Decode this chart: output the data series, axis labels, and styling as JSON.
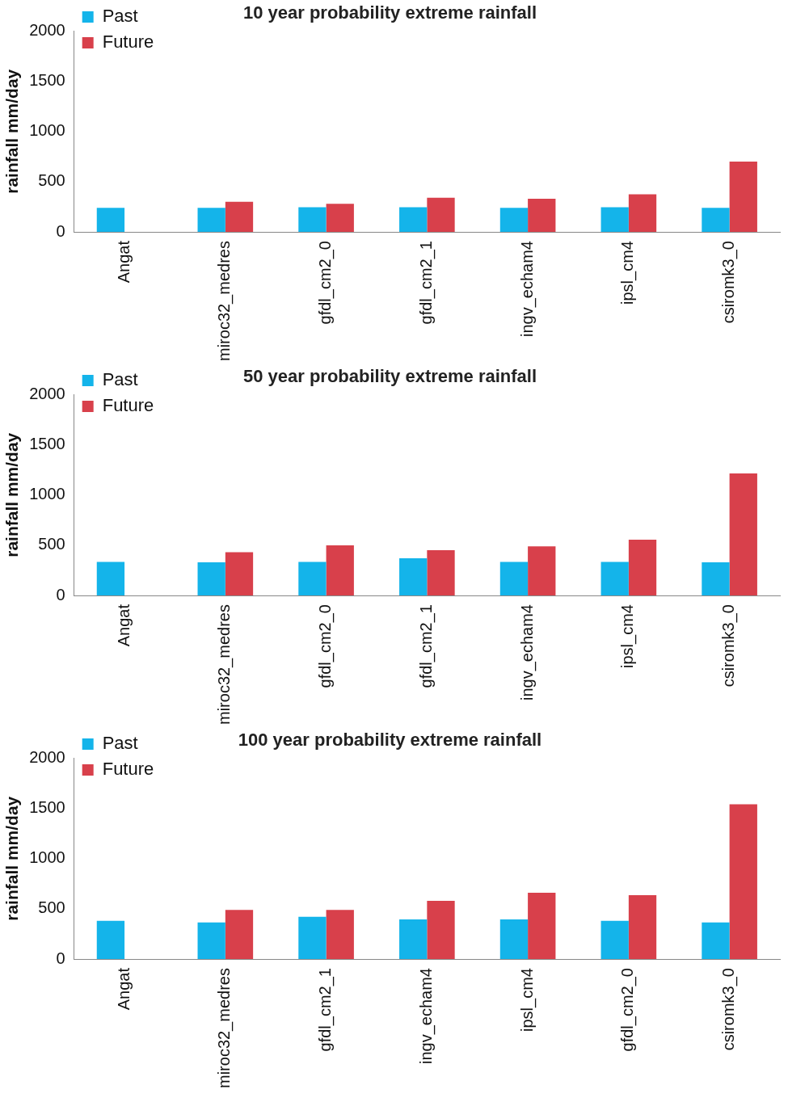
{
  "chart_data": [
    {
      "type": "bar",
      "title": "10 year probability extreme rainfall",
      "ylabel": "rainfall mm/day",
      "categories": [
        "Angat",
        "miroc32_medres",
        "gfdl_cm2_0",
        "gfdl_cm2_1",
        "ingv_echam4",
        "ipsl_cm4",
        "csiromk3_0"
      ],
      "series": [
        {
          "name": "Past",
          "color": "#14b4ea",
          "values": [
            240,
            240,
            245,
            245,
            240,
            245,
            240
          ]
        },
        {
          "name": "Future",
          "color": "#d8404b",
          "values": [
            null,
            300,
            280,
            340,
            330,
            375,
            700
          ]
        }
      ],
      "ylim": [
        0,
        2000
      ],
      "yticks": [
        0,
        500,
        1000,
        1500,
        2000
      ],
      "grid": false,
      "legend": "top left"
    },
    {
      "type": "bar",
      "title": "50 year probability extreme rainfall",
      "ylabel": "rainfall mm/day",
      "categories": [
        "Angat",
        "miroc32_medres",
        "gfdl_cm2_0",
        "gfdl_cm2_1",
        "ingv_echam4",
        "ipsl_cm4",
        "csiromk3_0"
      ],
      "series": [
        {
          "name": "Past",
          "color": "#14b4ea",
          "values": [
            335,
            330,
            335,
            370,
            335,
            335,
            330
          ]
        },
        {
          "name": "Future",
          "color": "#d8404b",
          "values": [
            null,
            430,
            500,
            450,
            490,
            555,
            1215
          ]
        }
      ],
      "ylim": [
        0,
        2000
      ],
      "yticks": [
        0,
        500,
        1000,
        1500,
        2000
      ],
      "grid": false,
      "legend": "top left"
    },
    {
      "type": "bar",
      "title": "100 year probability extreme rainfall",
      "ylabel": "rainfall mm/day",
      "categories": [
        "Angat",
        "miroc32_medres",
        "gfdl_cm2_1",
        "ingv_echam4",
        "ipsl_cm4",
        "gfdl_cm2_0",
        "csiromk3_0"
      ],
      "series": [
        {
          "name": "Past",
          "color": "#14b4ea",
          "values": [
            380,
            365,
            420,
            395,
            395,
            380,
            365
          ]
        },
        {
          "name": "Future",
          "color": "#d8404b",
          "values": [
            null,
            490,
            490,
            580,
            660,
            635,
            1540
          ]
        }
      ],
      "ylim": [
        0,
        2000
      ],
      "yticks": [
        0,
        500,
        1000,
        1500,
        2000
      ],
      "grid": false,
      "legend": "top left"
    }
  ]
}
